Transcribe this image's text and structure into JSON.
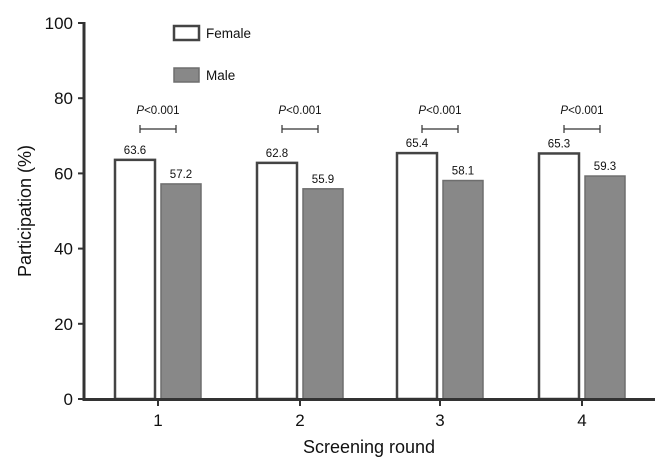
{
  "chart_data": {
    "type": "bar",
    "categories": [
      "1",
      "2",
      "3",
      "4"
    ],
    "xlabel": "Screening round",
    "ylabel": "Participation (%)",
    "ylim": [
      0,
      100
    ],
    "yticks": [
      "0",
      "20",
      "40",
      "60",
      "80",
      "100"
    ],
    "grid": false,
    "legend_position": "top-left",
    "series": [
      {
        "name": "Female",
        "values": [
          63.6,
          62.8,
          65.4,
          65.3
        ],
        "labels": [
          "63.6",
          "62.8",
          "65.4",
          "65.3"
        ],
        "color": "#ffffff",
        "stroke": "#444444"
      },
      {
        "name": "Male",
        "values": [
          57.2,
          55.9,
          58.1,
          59.3
        ],
        "labels": [
          "57.2",
          "55.9",
          "58.1",
          "59.3"
        ],
        "color": "#888888",
        "stroke": "#6e6e6e"
      }
    ],
    "annotations": [
      {
        "category": "1",
        "text_italic": "P",
        "text": "<0.001"
      },
      {
        "category": "2",
        "text_italic": "P",
        "text": "<0.001"
      },
      {
        "category": "3",
        "text_italic": "P",
        "text": "<0.001"
      },
      {
        "category": "4",
        "text_italic": "P",
        "text": "<0.001"
      }
    ]
  }
}
